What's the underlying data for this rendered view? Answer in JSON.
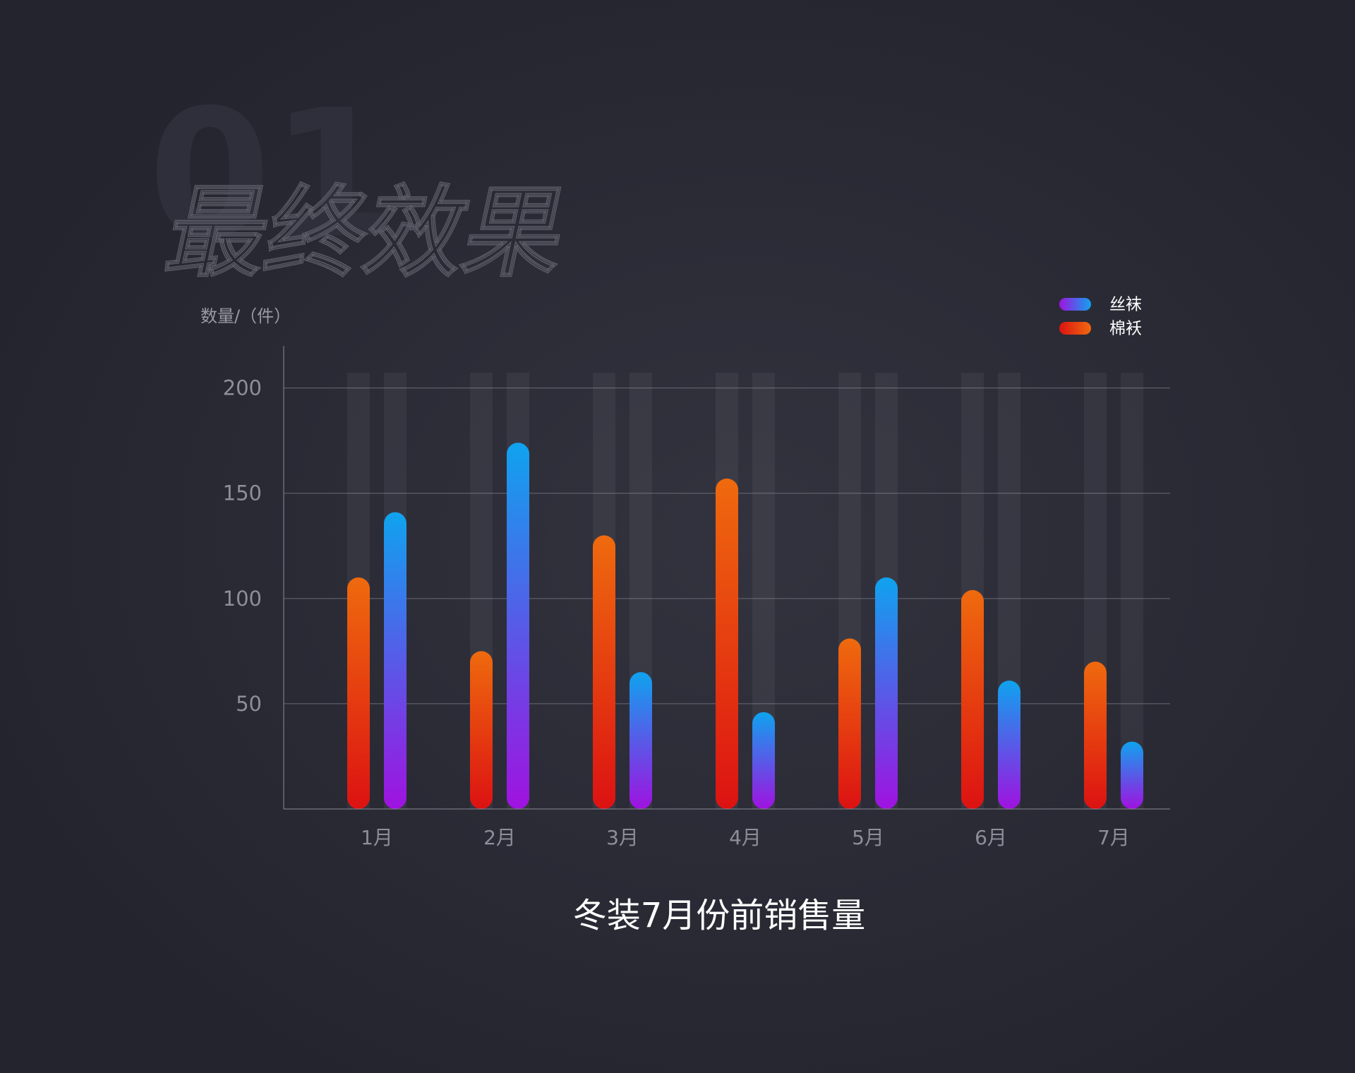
{
  "watermark_number": "01",
  "watermark_title": "最终效果",
  "chart_data": {
    "type": "bar",
    "title": "冬装7月份前销售量",
    "y_label": "数量/（件）",
    "categories": [
      "1月",
      "2月",
      "3月",
      "4月",
      "5月",
      "6月",
      "7月"
    ],
    "series": [
      {
        "name": "棉袄",
        "color": [
          "#ef6a0e",
          "#dc1212"
        ],
        "values": [
          110,
          75,
          130,
          157,
          81,
          104,
          70
        ]
      },
      {
        "name": "丝袜",
        "color": [
          "#0fa3ef",
          "#a012e0"
        ],
        "values": [
          141,
          174,
          65,
          46,
          110,
          61,
          32
        ]
      }
    ],
    "ylim": [
      0,
      220
    ],
    "yticks": [
      50,
      100,
      150,
      200
    ],
    "grid": true,
    "legend": "top-right"
  }
}
